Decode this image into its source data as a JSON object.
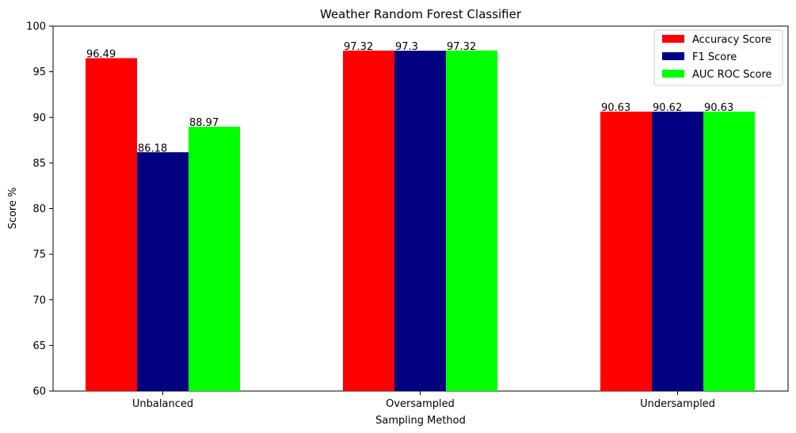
{
  "chart_data": {
    "type": "bar",
    "title": "Weather Random Forest Classifier",
    "xlabel": "Sampling Method",
    "ylabel": "Score %",
    "ylim": [
      60,
      100
    ],
    "yticks": [
      60,
      65,
      70,
      75,
      80,
      85,
      90,
      95,
      100
    ],
    "categories": [
      "Unbalanced",
      "Oversampled",
      "Undersampled"
    ],
    "series": [
      {
        "name": "Accuracy Score",
        "color": "#ff0000",
        "values": [
          96.49,
          97.32,
          90.63
        ],
        "labels": [
          "96.49",
          "97.32",
          "90.63"
        ]
      },
      {
        "name": "F1 Score",
        "color": "#000080",
        "values": [
          86.18,
          97.3,
          90.62
        ],
        "labels": [
          "86.18",
          "97.3",
          "90.62"
        ]
      },
      {
        "name": "AUC ROC Score",
        "color": "#00ff00",
        "values": [
          88.97,
          97.32,
          90.63
        ],
        "labels": [
          "88.97",
          "97.32",
          "90.63"
        ]
      }
    ],
    "grid": false,
    "legend_position": "top-right"
  }
}
